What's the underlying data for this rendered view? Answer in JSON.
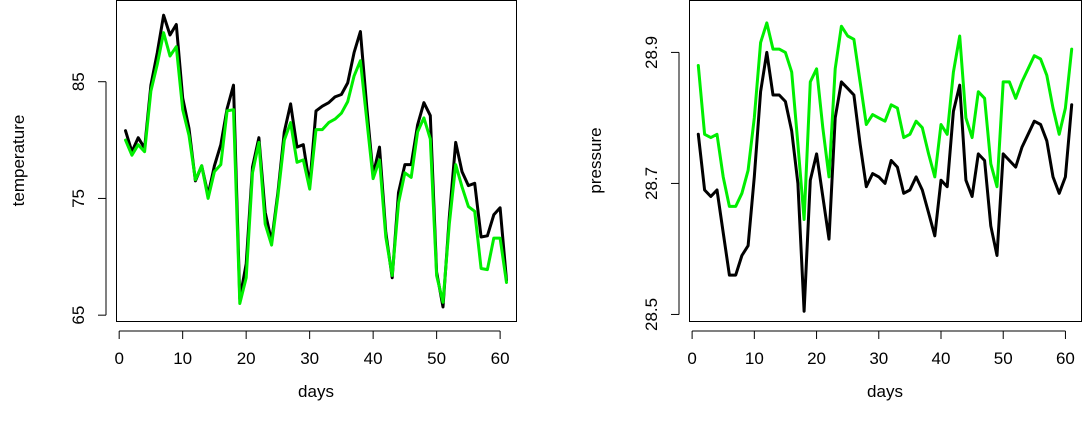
{
  "chart_data": [
    {
      "type": "line",
      "xlabel": "days",
      "ylabel": "temperature",
      "xlim": [
        -0.5,
        62.5
      ],
      "ylim": [
        64.5,
        92
      ],
      "xticks": [
        "0",
        "10",
        "20",
        "30",
        "40",
        "50",
        "60"
      ],
      "yticks": [
        "65",
        "75",
        "85"
      ],
      "grid": false,
      "legend": "none",
      "x": [
        1,
        2,
        3,
        4,
        5,
        6,
        7,
        8,
        9,
        10,
        11,
        12,
        13,
        14,
        15,
        16,
        17,
        18,
        19,
        20,
        21,
        22,
        23,
        24,
        25,
        26,
        27,
        28,
        29,
        30,
        31,
        32,
        33,
        34,
        35,
        36,
        37,
        38,
        39,
        40,
        41,
        42,
        43,
        44,
        45,
        46,
        47,
        48,
        49,
        50,
        51,
        52,
        53,
        54,
        55,
        56,
        57,
        58,
        59,
        60,
        61
      ],
      "series": [
        {
          "color": "#000000",
          "values": [
            80.8,
            79,
            80.2,
            79.3,
            84.7,
            87.5,
            90.7,
            89,
            89.9,
            83.6,
            81,
            76.5,
            77.8,
            75.3,
            77.8,
            79.6,
            82.7,
            84.7,
            66.4,
            69.4,
            77.7,
            80.2,
            73.8,
            71.3,
            75.5,
            80.7,
            83.1,
            79.4,
            79.6,
            76.1,
            82.5,
            82.9,
            83.2,
            83.7,
            83.9,
            84.9,
            87.5,
            89.3,
            82.8,
            77,
            79.4,
            72.1,
            68.2,
            75.5,
            77.9,
            77.9,
            81.3,
            83.2,
            82.1,
            68.7,
            65.7,
            73.4,
            79.8,
            77.3,
            76.1,
            76.3,
            71.7,
            71.8,
            73.6,
            74.2,
            68
          ]
        },
        {
          "color": "#00ee00",
          "values": [
            80,
            78.7,
            79.6,
            79,
            84.2,
            86.5,
            89.2,
            87.2,
            88,
            82.6,
            80.4,
            76.6,
            77.8,
            75,
            77.3,
            77.9,
            82.5,
            82.6,
            66,
            68.2,
            77.2,
            79.8,
            72.8,
            71,
            75.2,
            80,
            81.5,
            78.1,
            78.3,
            75.8,
            80.9,
            80.9,
            81.5,
            81.8,
            82.3,
            83.3,
            85.5,
            86.8,
            81.7,
            76.7,
            78.3,
            71.7,
            68.4,
            74.6,
            77.2,
            76.8,
            80.7,
            81.9,
            80.1,
            68.4,
            66.1,
            72.8,
            77.9,
            76,
            74.3,
            73.9,
            69,
            68.9,
            71.6,
            71.6,
            67.8
          ]
        }
      ]
    },
    {
      "type": "line",
      "xlabel": "days",
      "ylabel": "pressure",
      "xlim": [
        -0.5,
        62.5
      ],
      "ylim": [
        28.49,
        28.98
      ],
      "xticks": [
        "0",
        "10",
        "20",
        "30",
        "40",
        "50",
        "60"
      ],
      "yticks": [
        "28.5",
        "28.7",
        "28.9"
      ],
      "grid": false,
      "legend": "none",
      "x": [
        1,
        2,
        3,
        4,
        5,
        6,
        7,
        8,
        9,
        10,
        11,
        12,
        13,
        14,
        15,
        16,
        17,
        18,
        19,
        20,
        21,
        22,
        23,
        24,
        25,
        26,
        27,
        28,
        29,
        30,
        31,
        32,
        33,
        34,
        35,
        36,
        37,
        38,
        39,
        40,
        41,
        42,
        43,
        44,
        45,
        46,
        47,
        48,
        49,
        50,
        51,
        52,
        53,
        54,
        55,
        56,
        57,
        58,
        59,
        60,
        61
      ],
      "series": [
        {
          "color": "#000000",
          "values": [
            28.775,
            28.69,
            28.68,
            28.69,
            28.625,
            28.56,
            28.56,
            28.59,
            28.605,
            28.71,
            28.84,
            28.9,
            28.835,
            28.835,
            28.825,
            28.78,
            28.7,
            28.505,
            28.705,
            28.745,
            28.68,
            28.615,
            28.8,
            28.855,
            28.845,
            28.835,
            28.76,
            28.695,
            28.715,
            28.71,
            28.7,
            28.735,
            28.725,
            28.685,
            28.69,
            28.71,
            28.69,
            28.655,
            28.62,
            28.705,
            28.695,
            28.81,
            28.85,
            28.705,
            28.68,
            28.745,
            28.735,
            28.635,
            28.59,
            28.745,
            28.735,
            28.725,
            28.755,
            28.775,
            28.795,
            28.79,
            28.765,
            28.71,
            28.685,
            28.71,
            28.82
          ]
        },
        {
          "color": "#00ee00",
          "values": [
            28.88,
            28.775,
            28.77,
            28.775,
            28.71,
            28.665,
            28.665,
            28.685,
            28.72,
            28.8,
            28.915,
            28.945,
            28.905,
            28.905,
            28.9,
            28.87,
            28.76,
            28.645,
            28.855,
            28.875,
            28.785,
            28.71,
            28.875,
            28.94,
            28.925,
            28.92,
            28.855,
            28.79,
            28.805,
            28.8,
            28.795,
            28.82,
            28.815,
            28.77,
            28.775,
            28.795,
            28.785,
            28.745,
            28.71,
            28.79,
            28.775,
            28.87,
            28.925,
            28.8,
            28.77,
            28.84,
            28.83,
            28.73,
            28.695,
            28.855,
            28.855,
            28.83,
            28.855,
            28.875,
            28.895,
            28.89,
            28.865,
            28.815,
            28.775,
            28.815,
            28.905
          ]
        }
      ]
    }
  ]
}
